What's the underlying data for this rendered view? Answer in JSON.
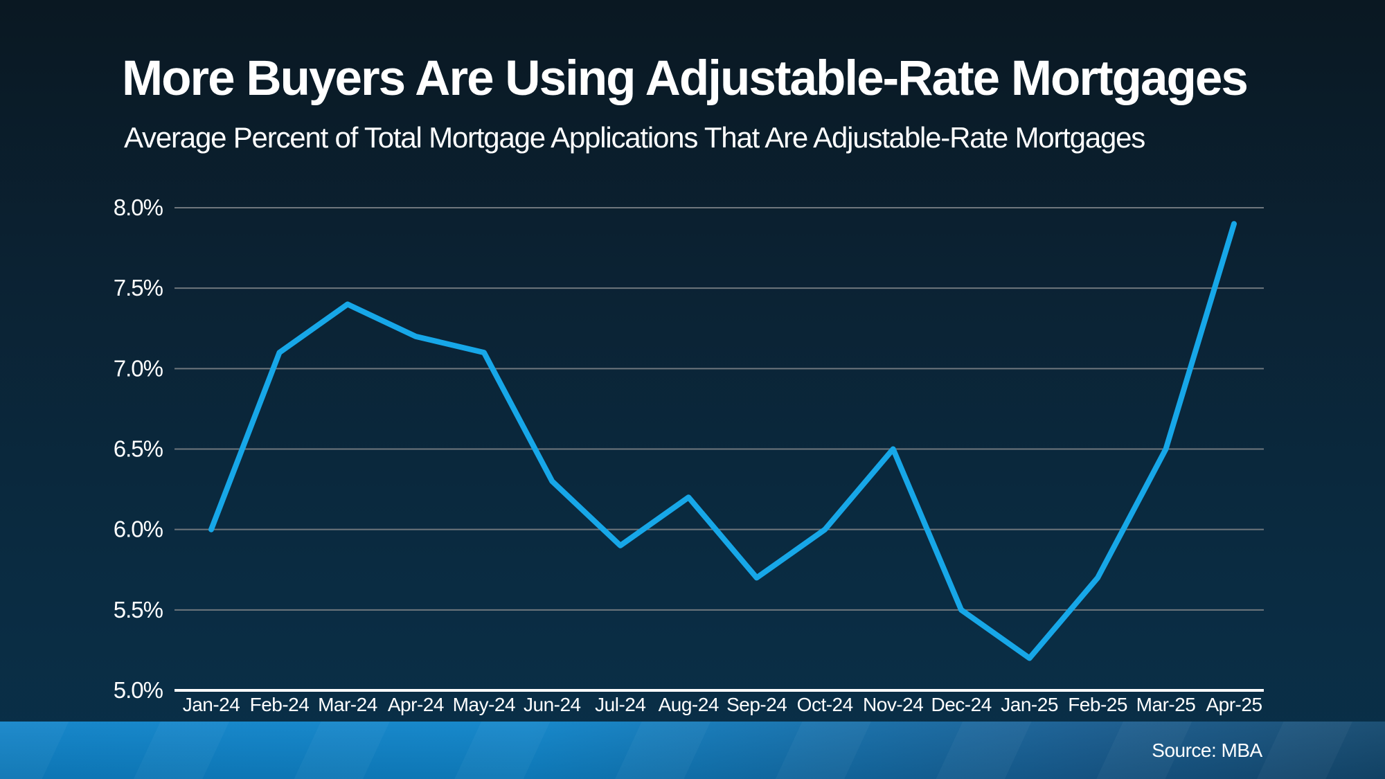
{
  "header": {
    "title": "More Buyers Are Using Adjustable-Rate Mortgages",
    "subtitle": "Average Percent of Total Mortgage Applications That Are Adjustable-Rate Mortgages"
  },
  "footer": {
    "source": "Source: MBA"
  },
  "colors": {
    "background_top": "#0A1822",
    "background_bottom": "#093049",
    "line": "#17A7E8",
    "gridline": "#6F777D",
    "axis_line": "#FFFFFF",
    "label_text": "#FFFFFF",
    "footer_bar_left": "#0F84C9",
    "footer_bar_right": "#14496F"
  },
  "chart_data": {
    "type": "line",
    "title": "More Buyers Are Using Adjustable-Rate Mortgages",
    "subtitle": "Average Percent of Total Mortgage Applications That Are Adjustable-Rate Mortgages",
    "categories": [
      "Jan-24",
      "Feb-24",
      "Mar-24",
      "Apr-24",
      "May-24",
      "Jun-24",
      "Jul-24",
      "Aug-24",
      "Sep-24",
      "Oct-24",
      "Nov-24",
      "Dec-24",
      "Jan-25",
      "Feb-25",
      "Mar-25",
      "Apr-25"
    ],
    "values": [
      6.0,
      7.1,
      7.4,
      7.2,
      7.1,
      6.3,
      5.9,
      6.2,
      5.7,
      6.0,
      6.5,
      5.5,
      5.2,
      5.7,
      6.5,
      7.9
    ],
    "unit": "%",
    "xlabel": "",
    "ylabel": "",
    "ylim": [
      5.0,
      8.0
    ],
    "ytick_step": 0.5,
    "ytick_labels": [
      "8.0%",
      "7.5%",
      "7.0%",
      "6.5%",
      "6.0%",
      "5.5%",
      "5.0%"
    ],
    "grid": true,
    "legend_position": "none",
    "source": "Source: MBA"
  }
}
